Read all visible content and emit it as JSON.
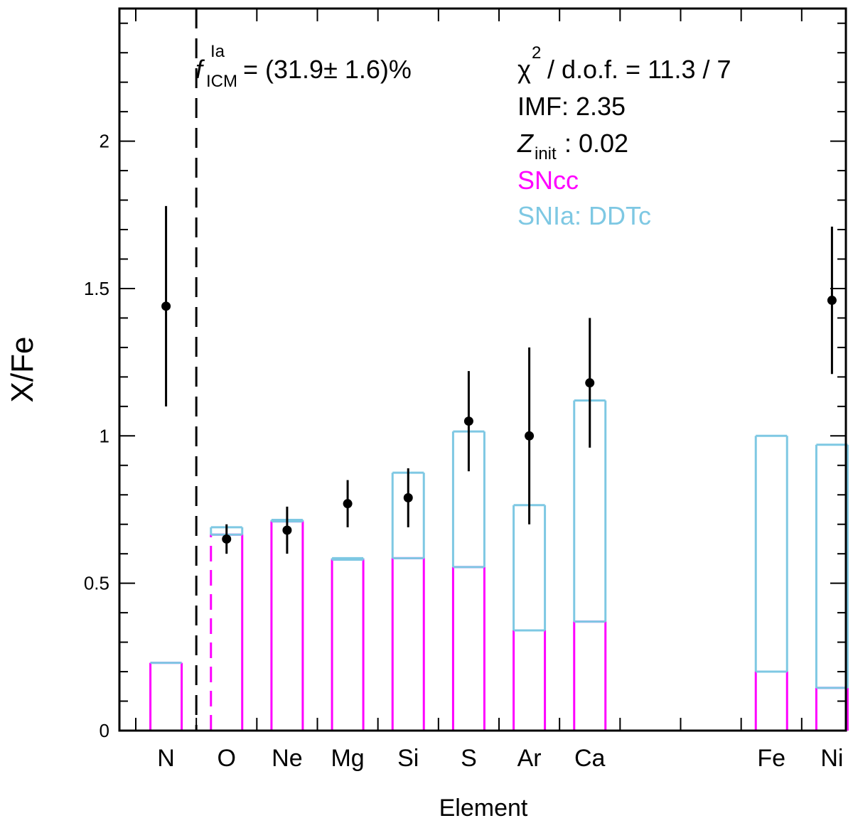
{
  "chart_data": {
    "type": "bar",
    "title": "",
    "xlabel": "Element",
    "ylabel": "X/Fe",
    "ylim": [
      0,
      2.45
    ],
    "yticks": [
      "0",
      "0.5",
      "1",
      "1.5",
      "2"
    ],
    "ytick_values": [
      0,
      0.5,
      1,
      1.5,
      2
    ],
    "grid": false,
    "slots": 12,
    "categories": [
      {
        "label": "N",
        "slot": 0,
        "sncc": 0.23,
        "total": 0.23,
        "dashed": false
      },
      {
        "label": "O",
        "slot": 1,
        "sncc": 0.665,
        "total": 0.69,
        "dashed": true
      },
      {
        "label": "Ne",
        "slot": 2,
        "sncc": 0.71,
        "total": 0.715,
        "dashed": false
      },
      {
        "label": "Mg",
        "slot": 3,
        "sncc": 0.58,
        "total": 0.585,
        "dashed": false
      },
      {
        "label": "Si",
        "slot": 4,
        "sncc": 0.585,
        "total": 0.875,
        "dashed": false
      },
      {
        "label": "S",
        "slot": 5,
        "sncc": 0.555,
        "total": 1.015,
        "dashed": false
      },
      {
        "label": "Ar",
        "slot": 6,
        "sncc": 0.34,
        "total": 0.765,
        "dashed": false
      },
      {
        "label": "Ca",
        "slot": 7,
        "sncc": 0.37,
        "total": 1.12,
        "dashed": false
      },
      {
        "label": "Fe",
        "slot": 10,
        "sncc": 0.2,
        "total": 1.0,
        "dashed": false
      },
      {
        "label": "Ni",
        "slot": 11,
        "sncc": 0.145,
        "total": 0.97,
        "dashed": false
      }
    ],
    "series": [
      {
        "name": "SNcc",
        "color": "#ff00ff"
      },
      {
        "name": "SNIa: DDTc",
        "color": "#7ec8e3"
      }
    ],
    "observations": [
      {
        "label": "N",
        "slot": 0,
        "y": 1.44,
        "err_low": 1.1,
        "err_high": 1.78
      },
      {
        "label": "O",
        "slot": 1,
        "y": 0.65,
        "err_low": 0.6,
        "err_high": 0.7
      },
      {
        "label": "Ne",
        "slot": 2,
        "y": 0.68,
        "err_low": 0.6,
        "err_high": 0.76
      },
      {
        "label": "Mg",
        "slot": 3,
        "y": 0.77,
        "err_low": 0.69,
        "err_high": 0.85
      },
      {
        "label": "Si",
        "slot": 4,
        "y": 0.79,
        "err_low": 0.69,
        "err_high": 0.89
      },
      {
        "label": "S",
        "slot": 5,
        "y": 1.05,
        "err_low": 0.88,
        "err_high": 1.22
      },
      {
        "label": "Ar",
        "slot": 6,
        "y": 1.0,
        "err_low": 0.7,
        "err_high": 1.3
      },
      {
        "label": "Ca",
        "slot": 7,
        "y": 1.18,
        "err_low": 0.96,
        "err_high": 1.4
      },
      {
        "label": "Ni",
        "slot": 11,
        "y": 1.46,
        "err_low": 1.21,
        "err_high": 1.71
      }
    ],
    "annotations": {
      "fraction_symbol": "f",
      "fraction_sup": "Ia",
      "fraction_sub": "ICM",
      "fraction_value": "= (31.9± 1.6)%",
      "chi_symbol": "χ",
      "chi_sup": "2",
      "chi_rest": "/ d.o.f. = 11.3 / 7",
      "imf": "IMF: 2.35",
      "z_symbol": "Z",
      "z_sub": "init",
      "z_value": ": 0.02",
      "legend_sncc": "SNcc",
      "legend_snia": "SNIa: DDTc"
    },
    "colors": {
      "axis": "#000000",
      "sncc": "#ff00ff",
      "snia": "#7ec8e3",
      "points": "#000000"
    }
  }
}
